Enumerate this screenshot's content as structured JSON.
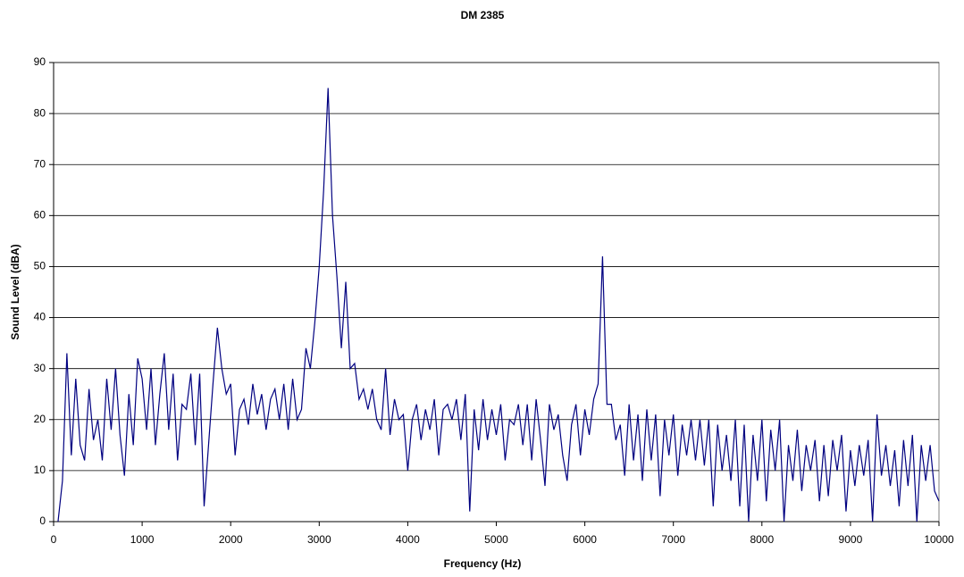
{
  "chart_data": {
    "type": "line",
    "title": "DM 2385",
    "x_label": "Frequency (Hz)",
    "y_label": "Sound Level (dBA)",
    "x": [
      50,
      100,
      150,
      200,
      250,
      300,
      350,
      400,
      450,
      500,
      550,
      600,
      650,
      700,
      750,
      800,
      850,
      900,
      950,
      1000,
      1050,
      1100,
      1150,
      1200,
      1250,
      1300,
      1350,
      1400,
      1450,
      1500,
      1550,
      1600,
      1650,
      1700,
      1750,
      1800,
      1850,
      1900,
      1950,
      2000,
      2050,
      2100,
      2150,
      2200,
      2250,
      2300,
      2350,
      2400,
      2450,
      2500,
      2550,
      2600,
      2650,
      2700,
      2750,
      2800,
      2850,
      2900,
      2950,
      3000,
      3050,
      3100,
      3150,
      3200,
      3250,
      3300,
      3350,
      3400,
      3450,
      3500,
      3550,
      3600,
      3650,
      3700,
      3750,
      3800,
      3850,
      3900,
      3950,
      4000,
      4050,
      4100,
      4150,
      4200,
      4250,
      4300,
      4350,
      4400,
      4450,
      4500,
      4550,
      4600,
      4650,
      4700,
      4750,
      4800,
      4850,
      4900,
      4950,
      5000,
      5050,
      5100,
      5150,
      5200,
      5250,
      5300,
      5350,
      5400,
      5450,
      5500,
      5550,
      5600,
      5650,
      5700,
      5750,
      5800,
      5850,
      5900,
      5950,
      6000,
      6050,
      6100,
      6150,
      6200,
      6250,
      6300,
      6350,
      6400,
      6450,
      6500,
      6550,
      6600,
      6650,
      6700,
      6750,
      6800,
      6850,
      6900,
      6950,
      7000,
      7050,
      7100,
      7150,
      7200,
      7250,
      7300,
      7350,
      7400,
      7450,
      7500,
      7550,
      7600,
      7650,
      7700,
      7750,
      7800,
      7850,
      7900,
      7950,
      8000,
      8050,
      8100,
      8150,
      8200,
      8250,
      8300,
      8350,
      8400,
      8450,
      8500,
      8550,
      8600,
      8650,
      8700,
      8750,
      8800,
      8850,
      8900,
      8950,
      9000,
      9050,
      9100,
      9150,
      9200,
      9250,
      9300,
      9350,
      9400,
      9450,
      9500,
      9550,
      9600,
      9650,
      9700,
      9750,
      9800,
      9850,
      9900,
      9950,
      10000
    ],
    "series": [
      {
        "name": "DM 2385",
        "color": "#000080",
        "values": [
          0,
          8,
          33,
          13,
          28,
          15,
          12,
          26,
          16,
          20,
          12,
          28,
          18,
          30,
          17,
          9,
          25,
          15,
          32,
          28,
          18,
          30,
          15,
          25,
          33,
          18,
          29,
          12,
          23,
          22,
          29,
          15,
          29,
          3,
          15,
          27,
          38,
          30,
          25,
          27,
          13,
          22,
          24,
          19,
          27,
          21,
          25,
          18,
          24,
          26,
          20,
          27,
          18,
          28,
          20,
          22,
          34,
          30,
          39,
          50,
          65,
          85,
          60,
          48,
          34,
          47,
          30,
          31,
          24,
          26,
          22,
          26,
          20,
          18,
          30,
          17,
          24,
          20,
          21,
          10,
          20,
          23,
          16,
          22,
          18,
          24,
          13,
          22,
          23,
          20,
          24,
          16,
          25,
          2,
          22,
          14,
          24,
          16,
          22,
          17,
          23,
          12,
          20,
          19,
          23,
          15,
          23,
          12,
          24,
          16,
          7,
          23,
          18,
          21,
          13,
          8,
          19,
          23,
          13,
          22,
          17,
          24,
          27,
          52,
          23,
          23,
          16,
          19,
          9,
          23,
          12,
          21,
          8,
          22,
          12,
          21,
          5,
          20,
          13,
          21,
          9,
          19,
          13,
          20,
          12,
          20,
          11,
          20,
          3,
          19,
          10,
          17,
          8,
          20,
          3,
          19,
          0,
          17,
          8,
          20,
          4,
          18,
          10,
          20,
          0,
          15,
          8,
          18,
          6,
          15,
          10,
          16,
          4,
          15,
          5,
          16,
          10,
          17,
          2,
          14,
          7,
          15,
          9,
          16,
          0,
          21,
          9,
          15,
          7,
          14,
          3,
          16,
          7,
          17,
          0,
          15,
          8,
          15,
          6,
          4
        ]
      }
    ],
    "xlim": [
      0,
      10000
    ],
    "ylim": [
      0,
      90
    ],
    "xticks": [
      0,
      1000,
      2000,
      3000,
      4000,
      5000,
      6000,
      7000,
      8000,
      9000,
      10000
    ],
    "yticks": [
      0,
      10,
      20,
      30,
      40,
      50,
      60,
      70,
      80,
      90
    ],
    "grid": true
  }
}
